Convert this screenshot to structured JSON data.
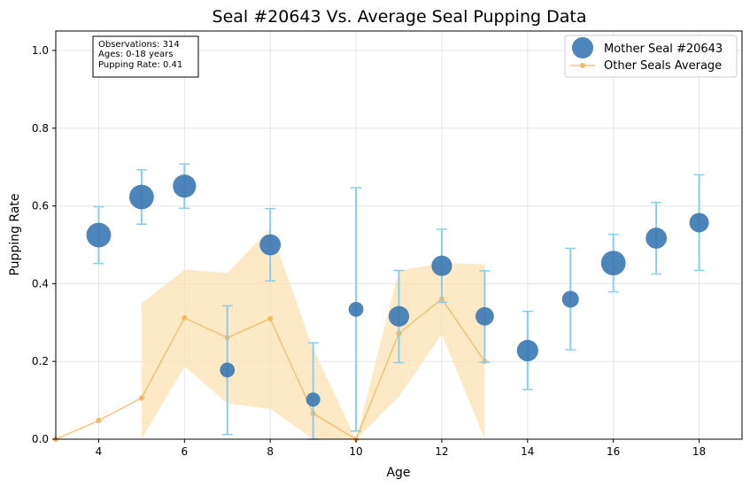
{
  "chart_data": {
    "type": "scatter",
    "title": "Seal #20643 Vs. Average Seal Pupping Data",
    "xlabel": "Age",
    "ylabel": "Pupping Rate",
    "xlim": [
      3,
      19
    ],
    "ylim": [
      0,
      1.05
    ],
    "xticks": [
      4,
      6,
      8,
      10,
      12,
      14,
      16,
      18
    ],
    "yticks": [
      "0.0",
      "0.2",
      "0.4",
      "0.6",
      "0.8",
      "1.0"
    ],
    "grid": true,
    "legend_position": "top-right",
    "stats_box": {
      "lines": [
        "Observations: 314",
        "Ages: 0-18 years",
        "Pupping Rate: 0.41"
      ]
    },
    "series": [
      {
        "name": "Mother Seal #20643",
        "kind": "bubble",
        "color": "#3a78b2",
        "points": [
          {
            "x": 4,
            "y": 0.525,
            "yerr_low": 0.452,
            "yerr_high": 0.598,
            "size": 3
          },
          {
            "x": 5,
            "y": 0.623,
            "yerr_low": 0.553,
            "yerr_high": 0.693,
            "size": 3
          },
          {
            "x": 6,
            "y": 0.651,
            "yerr_low": 0.594,
            "yerr_high": 0.708,
            "size": 2.7
          },
          {
            "x": 7,
            "y": 0.178,
            "yerr_low": 0.012,
            "yerr_high": 0.343,
            "size": 1.1
          },
          {
            "x": 8,
            "y": 0.5,
            "yerr_low": 0.407,
            "yerr_high": 0.593,
            "size": 2.2
          },
          {
            "x": 9,
            "y": 0.102,
            "yerr_low": 0.0,
            "yerr_high": 0.248,
            "size": 1.0
          },
          {
            "x": 10,
            "y": 0.334,
            "yerr_low": 0.021,
            "yerr_high": 0.647,
            "size": 1.1
          },
          {
            "x": 11,
            "y": 0.316,
            "yerr_low": 0.197,
            "yerr_high": 0.434,
            "size": 2.1
          },
          {
            "x": 12,
            "y": 0.446,
            "yerr_low": 0.352,
            "yerr_high": 0.54,
            "size": 2.1
          },
          {
            "x": 13,
            "y": 0.316,
            "yerr_low": 0.198,
            "yerr_high": 0.433,
            "size": 1.7
          },
          {
            "x": 14,
            "y": 0.228,
            "yerr_low": 0.128,
            "yerr_high": 0.329,
            "size": 2.3
          },
          {
            "x": 15,
            "y": 0.36,
            "yerr_low": 0.23,
            "yerr_high": 0.491,
            "size": 1.4
          },
          {
            "x": 16,
            "y": 0.453,
            "yerr_low": 0.379,
            "yerr_high": 0.527,
            "size": 3
          },
          {
            "x": 17,
            "y": 0.517,
            "yerr_low": 0.425,
            "yerr_high": 0.609,
            "size": 2.2
          },
          {
            "x": 18,
            "y": 0.557,
            "yerr_low": 0.434,
            "yerr_high": 0.68,
            "size": 1.9
          }
        ]
      },
      {
        "name": "Other Seals Average",
        "kind": "line",
        "color": "#f5b861",
        "band_color": "#fde2b4",
        "points": [
          {
            "x": 3,
            "y": 0.0
          },
          {
            "x": 4,
            "y": 0.048
          },
          {
            "x": 5,
            "y": 0.106
          },
          {
            "x": 6,
            "y": 0.312
          },
          {
            "x": 7,
            "y": 0.261
          },
          {
            "x": 8,
            "y": 0.31
          },
          {
            "x": 9,
            "y": 0.066
          },
          {
            "x": 10,
            "y": 0.0
          },
          {
            "x": 11,
            "y": 0.272
          },
          {
            "x": 12,
            "y": 0.361
          },
          {
            "x": 13,
            "y": 0.2
          }
        ],
        "band": [
          {
            "x": 5,
            "low": -0.14,
            "high": 0.35
          },
          {
            "x": 6,
            "low": 0.187,
            "high": 0.436
          },
          {
            "x": 7,
            "low": 0.092,
            "high": 0.428
          },
          {
            "x": 8,
            "low": 0.078,
            "high": 0.542
          },
          {
            "x": 9,
            "low": -0.1,
            "high": 0.232
          },
          {
            "x": 10,
            "low": -0.05,
            "high": 0.0
          },
          {
            "x": 11,
            "low": 0.11,
            "high": 0.434
          },
          {
            "x": 12,
            "low": 0.27,
            "high": 0.453
          },
          {
            "x": 13,
            "low": -0.05,
            "high": 0.45
          }
        ]
      }
    ]
  }
}
